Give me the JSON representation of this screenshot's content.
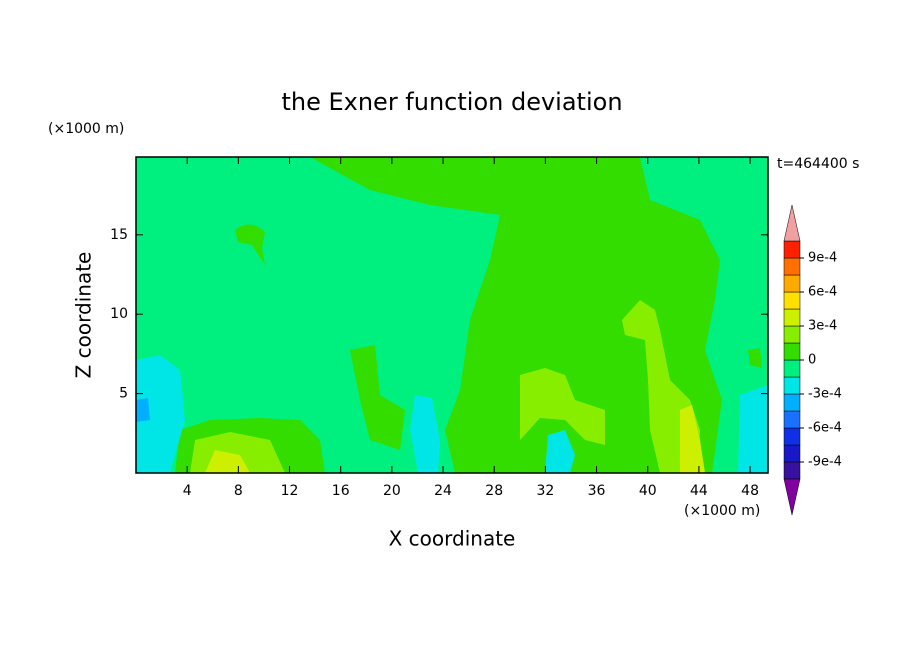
{
  "chart_data": {
    "type": "contour",
    "title": "the Exner function deviation",
    "xlabel": "X coordinate",
    "ylabel": "Z coordinate",
    "xunit": "(×1000 m)",
    "yunit": "(×1000 m)",
    "annotation": "t=464400 s",
    "xlim": [
      0,
      49.4
    ],
    "xticks": [
      4,
      8,
      12,
      16,
      20,
      24,
      28,
      32,
      36,
      40,
      44,
      48
    ],
    "ylim": [
      0,
      19.9
    ],
    "yticks": [
      5,
      10,
      15
    ],
    "levels": [
      -0.00105,
      -0.0009,
      -0.00075,
      -0.0006,
      -0.00045,
      -0.0003,
      -0.00015,
      0,
      0.00015,
      0.0003,
      0.00045,
      0.0006,
      0.00075,
      0.0009,
      0.00105
    ],
    "colors": [
      "#3a10a0",
      "#1818c8",
      "#1030e8",
      "#1a70ff",
      "#00b0ff",
      "#00e6e6",
      "#00f080",
      "#33dd00",
      "#88ee00",
      "#ccf000",
      "#ffe000",
      "#ffaa00",
      "#ff7000",
      "#ff2000"
    ],
    "under_color": "#8000a0",
    "over_color": "#f0a0a0",
    "cbar_ticks": [
      {
        "value": -0.0009,
        "label": "-9e-4"
      },
      {
        "value": -0.0006,
        "label": "-6e-4"
      },
      {
        "value": -0.0003,
        "label": "-3e-4"
      },
      0,
      {
        "value": 0.0003,
        "label": "3e-4"
      },
      {
        "value": 0.0006,
        "label": "6e-4"
      },
      {
        "value": 0.0009,
        "label": "9e-4"
      }
    ]
  }
}
